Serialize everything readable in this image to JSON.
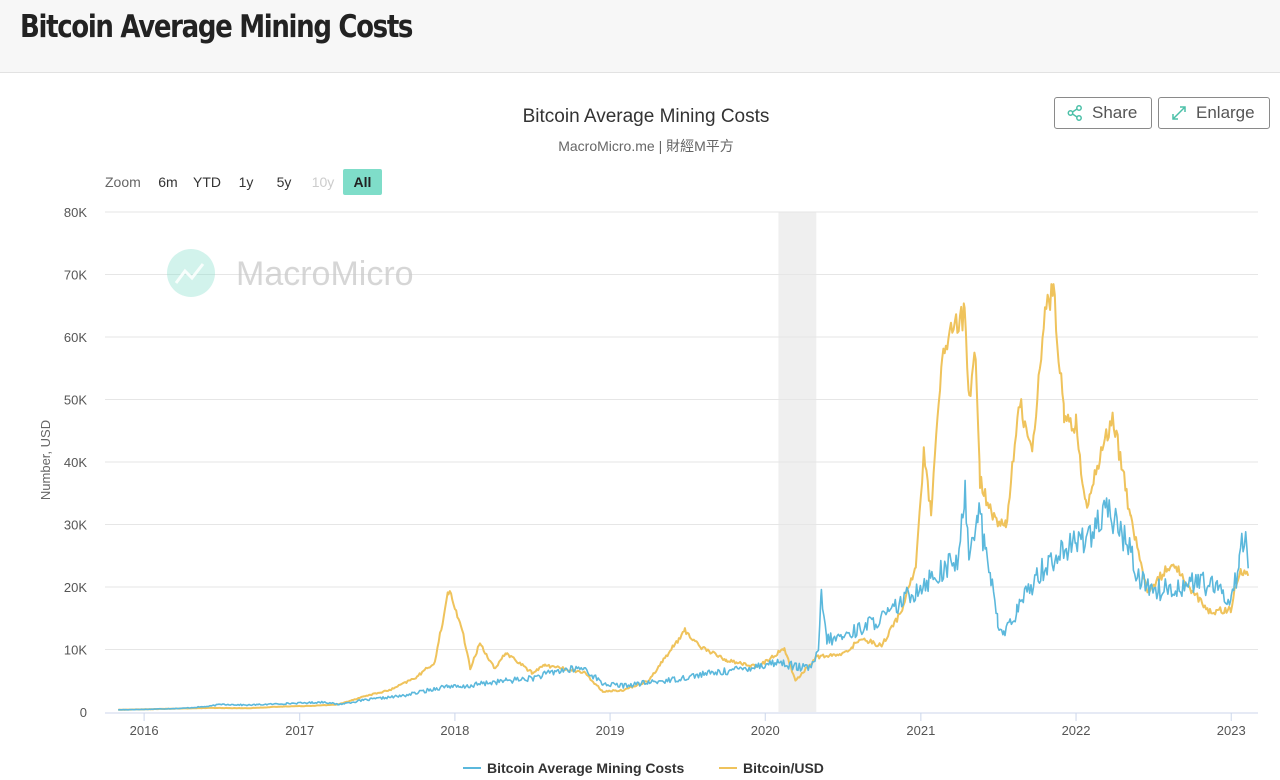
{
  "header": {
    "title": "Bitcoin Average Mining Costs"
  },
  "toolbar": {
    "share_label": "Share",
    "enlarge_label": "Enlarge",
    "share_icon": "share-icon",
    "enlarge_icon": "expand-arrows-icon"
  },
  "zoom": {
    "label": "Zoom",
    "buttons": [
      {
        "label": "6m",
        "state": "normal"
      },
      {
        "label": "YTD",
        "state": "normal"
      },
      {
        "label": "1y",
        "state": "normal"
      },
      {
        "label": "5y",
        "state": "normal"
      },
      {
        "label": "10y",
        "state": "disabled"
      },
      {
        "label": "All",
        "state": "active"
      }
    ]
  },
  "watermark": {
    "text": "MacroMicro",
    "color": "#7fddc9"
  },
  "colors": {
    "mining": "#5bb8dc",
    "btc": "#efc35c",
    "recession": "#efefef",
    "grid": "#e6e6e6",
    "zoom_active": "#7fddc9"
  },
  "chart_data": {
    "type": "line",
    "title": "Bitcoin Average Mining Costs",
    "subtitle": "MacroMicro.me | 財經M平方",
    "ylabel": "Number, USD",
    "xlabel": "",
    "xlim": [
      "2015-10-01",
      "2023-03-05"
    ],
    "ylim": [
      0,
      80000
    ],
    "y_ticks": [
      0,
      10000,
      20000,
      30000,
      40000,
      50000,
      60000,
      70000,
      80000
    ],
    "y_tick_labels": [
      "0",
      "10K",
      "20K",
      "30K",
      "40K",
      "50K",
      "60K",
      "70K",
      "80K"
    ],
    "x_ticks": [
      "2016-01-01",
      "2017-01-01",
      "2018-01-01",
      "2019-01-01",
      "2020-01-01",
      "2021-01-01",
      "2022-01-01",
      "2023-01-01"
    ],
    "x_tick_labels": [
      "2016",
      "2017",
      "2018",
      "2019",
      "2020",
      "2021",
      "2022",
      "2023"
    ],
    "shaded_band": [
      "2020-02-01",
      "2020-04-30"
    ],
    "grid": true,
    "legend_position": "bottom-center",
    "series": [
      {
        "name": "Bitcoin Average Mining Costs",
        "color": "#5bb8dc",
        "points": [
          [
            "2015-11-01",
            350
          ],
          [
            "2016-01-01",
            420
          ],
          [
            "2016-04-01",
            600
          ],
          [
            "2016-06-01",
            900
          ],
          [
            "2016-07-01",
            1250
          ],
          [
            "2016-09-01",
            1100
          ],
          [
            "2016-12-01",
            1350
          ],
          [
            "2017-02-01",
            1500
          ],
          [
            "2017-03-01",
            1600
          ],
          [
            "2017-04-01",
            1200
          ],
          [
            "2017-06-01",
            1900
          ],
          [
            "2017-09-01",
            2600
          ],
          [
            "2017-11-01",
            3500
          ],
          [
            "2017-12-15",
            4200
          ],
          [
            "2018-01-15",
            3900
          ],
          [
            "2018-03-01",
            4500
          ],
          [
            "2018-05-01",
            5000
          ],
          [
            "2018-07-01",
            5400
          ],
          [
            "2018-09-01",
            6600
          ],
          [
            "2018-11-01",
            7000
          ],
          [
            "2018-12-15",
            4500
          ],
          [
            "2019-02-01",
            4200
          ],
          [
            "2019-04-01",
            4700
          ],
          [
            "2019-06-01",
            5200
          ],
          [
            "2019-08-01",
            6000
          ],
          [
            "2019-10-01",
            6500
          ],
          [
            "2019-12-01",
            7200
          ],
          [
            "2020-02-01",
            8000
          ],
          [
            "2020-03-15",
            7200
          ],
          [
            "2020-04-15",
            7000
          ],
          [
            "2020-05-05",
            9500
          ],
          [
            "2020-05-12",
            18500
          ],
          [
            "2020-05-25",
            11500
          ],
          [
            "2020-07-01",
            12000
          ],
          [
            "2020-08-15",
            13500
          ],
          [
            "2020-10-15",
            15500
          ],
          [
            "2020-12-01",
            18500
          ],
          [
            "2021-01-15",
            21000
          ],
          [
            "2021-03-01",
            23000
          ],
          [
            "2021-04-01",
            24500
          ],
          [
            "2021-04-15",
            36000
          ],
          [
            "2021-04-25",
            25000
          ],
          [
            "2021-05-15",
            33000
          ],
          [
            "2021-06-01",
            26000
          ],
          [
            "2021-06-15",
            22000
          ],
          [
            "2021-07-01",
            14000
          ],
          [
            "2021-07-15",
            12500
          ],
          [
            "2021-08-15",
            16000
          ],
          [
            "2021-10-01",
            22000
          ],
          [
            "2021-11-15",
            25000
          ],
          [
            "2022-01-01",
            27000
          ],
          [
            "2022-02-15",
            29500
          ],
          [
            "2022-03-20",
            32000
          ],
          [
            "2022-05-01",
            27000
          ],
          [
            "2022-06-01",
            21000
          ],
          [
            "2022-07-15",
            19500
          ],
          [
            "2022-09-01",
            20000
          ],
          [
            "2022-10-15",
            21000
          ],
          [
            "2022-12-01",
            19500
          ],
          [
            "2023-01-01",
            18000
          ],
          [
            "2023-01-20",
            24000
          ],
          [
            "2023-02-01",
            29000
          ],
          [
            "2023-02-10",
            23000
          ]
        ]
      },
      {
        "name": "Bitcoin/USD",
        "color": "#efc35c",
        "points": [
          [
            "2015-11-01",
            350
          ],
          [
            "2016-01-01",
            430
          ],
          [
            "2016-06-01",
            650
          ],
          [
            "2016-09-01",
            610
          ],
          [
            "2016-12-01",
            900
          ],
          [
            "2017-02-01",
            1000
          ],
          [
            "2017-04-01",
            1200
          ],
          [
            "2017-06-01",
            2500
          ],
          [
            "2017-08-01",
            3500
          ],
          [
            "2017-10-01",
            5500
          ],
          [
            "2017-11-15",
            8000
          ],
          [
            "2017-12-17",
            19500
          ],
          [
            "2018-01-15",
            14000
          ],
          [
            "2018-02-06",
            7000
          ],
          [
            "2018-03-01",
            11000
          ],
          [
            "2018-04-06",
            6800
          ],
          [
            "2018-05-01",
            9500
          ],
          [
            "2018-07-01",
            6300
          ],
          [
            "2018-08-01",
            7500
          ],
          [
            "2018-11-01",
            6300
          ],
          [
            "2018-12-15",
            3300
          ],
          [
            "2019-02-01",
            3500
          ],
          [
            "2019-04-01",
            5000
          ],
          [
            "2019-06-26",
            13000
          ],
          [
            "2019-08-01",
            10500
          ],
          [
            "2019-10-01",
            8300
          ],
          [
            "2019-12-15",
            7200
          ],
          [
            "2020-02-15",
            10200
          ],
          [
            "2020-03-12",
            5000
          ],
          [
            "2020-05-01",
            8800
          ],
          [
            "2020-07-01",
            9200
          ],
          [
            "2020-08-15",
            11800
          ],
          [
            "2020-10-01",
            10600
          ],
          [
            "2020-11-15",
            16000
          ],
          [
            "2020-12-20",
            23500
          ],
          [
            "2021-01-08",
            41000
          ],
          [
            "2021-01-25",
            32000
          ],
          [
            "2021-02-20",
            56000
          ],
          [
            "2021-03-13",
            61000
          ],
          [
            "2021-04-14",
            63500
          ],
          [
            "2021-04-25",
            49000
          ],
          [
            "2021-05-10",
            58000
          ],
          [
            "2021-05-20",
            37000
          ],
          [
            "2021-06-22",
            31000
          ],
          [
            "2021-07-20",
            29800
          ],
          [
            "2021-08-22",
            49500
          ],
          [
            "2021-09-20",
            42000
          ],
          [
            "2021-10-20",
            64000
          ],
          [
            "2021-11-09",
            67500
          ],
          [
            "2021-12-04",
            47000
          ],
          [
            "2022-01-01",
            46000
          ],
          [
            "2022-01-24",
            33000
          ],
          [
            "2022-03-28",
            47500
          ],
          [
            "2022-05-10",
            31000
          ],
          [
            "2022-06-18",
            19000
          ],
          [
            "2022-08-15",
            24000
          ],
          [
            "2022-10-01",
            19500
          ],
          [
            "2022-11-09",
            16000
          ],
          [
            "2022-12-31",
            16500
          ],
          [
            "2023-01-20",
            22500
          ],
          [
            "2023-02-10",
            21800
          ]
        ]
      }
    ]
  }
}
